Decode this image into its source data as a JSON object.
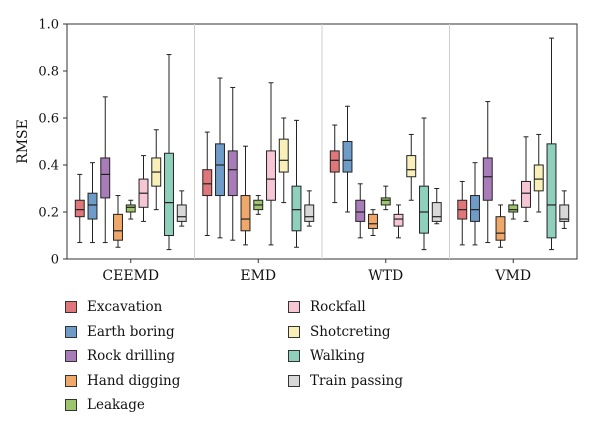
{
  "chart_data": {
    "type": "box",
    "ylabel": "RMSE",
    "ylim": [
      0,
      1.0
    ],
    "yticks": [
      "0",
      "0.2",
      "0.4",
      "0.6",
      "0.8",
      "1.0"
    ],
    "groups": [
      "CEEMD",
      "EMD",
      "WTD",
      "VMD"
    ],
    "grid": "vertical separators between groups",
    "legend_placement": "bottom, two columns",
    "series": [
      {
        "name": "Excavation",
        "color": "#e0767a",
        "boxes": [
          {
            "min": 0.07,
            "q1": 0.18,
            "median": 0.21,
            "q3": 0.25,
            "max": 0.36
          },
          {
            "min": 0.1,
            "q1": 0.27,
            "median": 0.32,
            "q3": 0.38,
            "max": 0.54
          },
          {
            "min": 0.24,
            "q1": 0.37,
            "median": 0.42,
            "q3": 0.46,
            "max": 0.57
          },
          {
            "min": 0.06,
            "q1": 0.17,
            "median": 0.21,
            "q3": 0.25,
            "max": 0.33
          }
        ]
      },
      {
        "name": "Earth boring",
        "color": "#6f9bc8",
        "boxes": [
          {
            "min": 0.07,
            "q1": 0.17,
            "median": 0.23,
            "q3": 0.28,
            "max": 0.41
          },
          {
            "min": 0.09,
            "q1": 0.27,
            "median": 0.4,
            "q3": 0.49,
            "max": 0.77
          },
          {
            "min": 0.2,
            "q1": 0.37,
            "median": 0.42,
            "q3": 0.5,
            "max": 0.65
          },
          {
            "min": 0.06,
            "q1": 0.16,
            "median": 0.21,
            "q3": 0.27,
            "max": 0.41
          }
        ]
      },
      {
        "name": "Rock drilling",
        "color": "#a77cb8",
        "boxes": [
          {
            "min": 0.07,
            "q1": 0.26,
            "median": 0.36,
            "q3": 0.43,
            "max": 0.69
          },
          {
            "min": 0.08,
            "q1": 0.27,
            "median": 0.38,
            "q3": 0.46,
            "max": 0.73
          },
          {
            "min": 0.09,
            "q1": 0.16,
            "median": 0.2,
            "q3": 0.25,
            "max": 0.32
          },
          {
            "min": 0.07,
            "q1": 0.25,
            "median": 0.35,
            "q3": 0.43,
            "max": 0.67
          }
        ]
      },
      {
        "name": "Hand digging",
        "color": "#efa86a",
        "boxes": [
          {
            "min": 0.05,
            "q1": 0.08,
            "median": 0.12,
            "q3": 0.19,
            "max": 0.27
          },
          {
            "min": 0.06,
            "q1": 0.12,
            "median": 0.17,
            "q3": 0.27,
            "max": 0.48
          },
          {
            "min": 0.1,
            "q1": 0.13,
            "median": 0.15,
            "q3": 0.19,
            "max": 0.21
          },
          {
            "min": 0.05,
            "q1": 0.08,
            "median": 0.11,
            "q3": 0.18,
            "max": 0.23
          }
        ]
      },
      {
        "name": "Leakage",
        "color": "#9dc56e",
        "boxes": [
          {
            "min": 0.17,
            "q1": 0.2,
            "median": 0.22,
            "q3": 0.23,
            "max": 0.25
          },
          {
            "min": 0.19,
            "q1": 0.21,
            "median": 0.23,
            "q3": 0.25,
            "max": 0.27
          },
          {
            "min": 0.21,
            "q1": 0.23,
            "median": 0.25,
            "q3": 0.26,
            "max": 0.31
          },
          {
            "min": 0.17,
            "q1": 0.2,
            "median": 0.21,
            "q3": 0.23,
            "max": 0.25
          }
        ]
      },
      {
        "name": "Rockfall",
        "color": "#f6c6d4",
        "boxes": [
          {
            "min": 0.16,
            "q1": 0.22,
            "median": 0.28,
            "q3": 0.34,
            "max": 0.44
          },
          {
            "min": 0.06,
            "q1": 0.25,
            "median": 0.34,
            "q3": 0.46,
            "max": 0.75
          },
          {
            "min": 0.09,
            "q1": 0.14,
            "median": 0.17,
            "q3": 0.19,
            "max": 0.23
          },
          {
            "min": 0.16,
            "q1": 0.22,
            "median": 0.28,
            "q3": 0.33,
            "max": 0.52
          }
        ]
      },
      {
        "name": "Shotcreting",
        "color": "#f8f0b8",
        "boxes": [
          {
            "min": 0.21,
            "q1": 0.31,
            "median": 0.37,
            "q3": 0.43,
            "max": 0.55
          },
          {
            "min": 0.24,
            "q1": 0.37,
            "median": 0.42,
            "q3": 0.51,
            "max": 0.6
          },
          {
            "min": 0.25,
            "q1": 0.35,
            "median": 0.38,
            "q3": 0.44,
            "max": 0.53
          },
          {
            "min": 0.2,
            "q1": 0.29,
            "median": 0.34,
            "q3": 0.4,
            "max": 0.53
          }
        ]
      },
      {
        "name": "Walking",
        "color": "#8fd0bd",
        "boxes": [
          {
            "min": 0.04,
            "q1": 0.1,
            "median": 0.24,
            "q3": 0.45,
            "max": 0.87
          },
          {
            "min": 0.05,
            "q1": 0.12,
            "median": 0.21,
            "q3": 0.31,
            "max": 0.59
          },
          {
            "min": 0.04,
            "q1": 0.11,
            "median": 0.2,
            "q3": 0.31,
            "max": 0.6
          },
          {
            "min": 0.04,
            "q1": 0.09,
            "median": 0.23,
            "q3": 0.49,
            "max": 0.94
          }
        ]
      },
      {
        "name": "Train passing",
        "color": "#d8d8d8",
        "boxes": [
          {
            "min": 0.14,
            "q1": 0.16,
            "median": 0.18,
            "q3": 0.23,
            "max": 0.29
          },
          {
            "min": 0.14,
            "q1": 0.16,
            "median": 0.18,
            "q3": 0.23,
            "max": 0.29
          },
          {
            "min": 0.15,
            "q1": 0.16,
            "median": 0.18,
            "q3": 0.24,
            "max": 0.3
          },
          {
            "min": 0.13,
            "q1": 0.16,
            "median": 0.17,
            "q3": 0.23,
            "max": 0.29
          }
        ]
      }
    ]
  }
}
